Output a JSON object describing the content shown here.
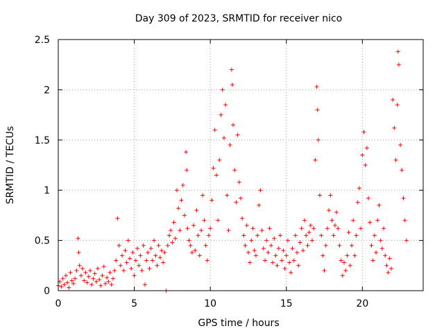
{
  "chart_data": {
    "type": "scatter",
    "title": "Day 309 of 2023, SRMTID for receiver nico",
    "xlabel": "GPS time / hours",
    "ylabel": "SRMTID / TECUs",
    "xlim": [
      0,
      24
    ],
    "ylim": [
      0,
      2.5
    ],
    "xticks": [
      0,
      5,
      10,
      15,
      20
    ],
    "yticks": [
      0,
      0.5,
      1,
      1.5,
      2,
      2.5
    ],
    "xtick_labels": [
      "0",
      "5",
      "10",
      "15",
      "20"
    ],
    "ytick_labels": [
      "0",
      "0.5",
      "1",
      "1.5",
      "2",
      "2.5"
    ],
    "grid": true,
    "marker": "+",
    "color": "#ff0000",
    "series": [
      {
        "name": "SRMTID",
        "points": [
          [
            0.0,
            0.05
          ],
          [
            0.1,
            0.09
          ],
          [
            0.2,
            0.04
          ],
          [
            0.3,
            0.12
          ],
          [
            0.4,
            0.06
          ],
          [
            0.5,
            0.15
          ],
          [
            0.6,
            0.08
          ],
          [
            0.7,
            0.03
          ],
          [
            0.8,
            0.18
          ],
          [
            0.9,
            0.1
          ],
          [
            1.0,
            0.07
          ],
          [
            1.1,
            0.12
          ],
          [
            1.2,
            0.2
          ],
          [
            1.3,
            0.52
          ],
          [
            1.35,
            0.38
          ],
          [
            1.4,
            0.25
          ],
          [
            1.5,
            0.15
          ],
          [
            1.6,
            0.22
          ],
          [
            1.7,
            0.1
          ],
          [
            1.8,
            0.18
          ],
          [
            1.9,
            0.08
          ],
          [
            2.0,
            0.14
          ],
          [
            2.1,
            0.2
          ],
          [
            2.2,
            0.06
          ],
          [
            2.3,
            0.12
          ],
          [
            2.4,
            0.17
          ],
          [
            2.5,
            0.09
          ],
          [
            2.6,
            0.22
          ],
          [
            2.7,
            0.11
          ],
          [
            2.8,
            0.05
          ],
          [
            2.9,
            0.15
          ],
          [
            3.0,
            0.24
          ],
          [
            3.1,
            0.07
          ],
          [
            3.2,
            0.13
          ],
          [
            3.3,
            0.09
          ],
          [
            3.4,
            0.18
          ],
          [
            3.5,
            0.06
          ],
          [
            3.6,
            0.12
          ],
          [
            3.7,
            0.2
          ],
          [
            3.8,
            0.3
          ],
          [
            3.9,
            0.72
          ],
          [
            4.0,
            0.45
          ],
          [
            4.1,
            0.25
          ],
          [
            4.2,
            0.35
          ],
          [
            4.3,
            0.2
          ],
          [
            4.4,
            0.4
          ],
          [
            4.5,
            0.28
          ],
          [
            4.6,
            0.5
          ],
          [
            4.7,
            0.32
          ],
          [
            4.8,
            0.22
          ],
          [
            4.9,
            0.38
          ],
          [
            5.0,
            0.15
          ],
          [
            5.1,
            0.3
          ],
          [
            5.2,
            0.42
          ],
          [
            5.3,
            0.25
          ],
          [
            5.4,
            0.35
          ],
          [
            5.5,
            0.2
          ],
          [
            5.6,
            0.45
          ],
          [
            5.7,
            0.06
          ],
          [
            5.8,
            0.3
          ],
          [
            5.9,
            0.38
          ],
          [
            6.0,
            0.22
          ],
          [
            6.1,
            0.42
          ],
          [
            6.2,
            0.3
          ],
          [
            6.3,
            0.5
          ],
          [
            6.4,
            0.35
          ],
          [
            6.5,
            0.25
          ],
          [
            6.6,
            0.45
          ],
          [
            6.7,
            0.33
          ],
          [
            6.8,
            0.4
          ],
          [
            6.9,
            0.28
          ],
          [
            7.0,
            0.38
          ],
          [
            7.1,
            0.0
          ],
          [
            7.2,
            0.45
          ],
          [
            7.3,
            0.55
          ],
          [
            7.4,
            0.6
          ],
          [
            7.5,
            0.48
          ],
          [
            7.6,
            0.68
          ],
          [
            7.7,
            0.52
          ],
          [
            7.8,
            1.0
          ],
          [
            7.9,
            0.82
          ],
          [
            8.0,
            0.6
          ],
          [
            8.1,
            0.9
          ],
          [
            8.2,
            1.05
          ],
          [
            8.3,
            0.75
          ],
          [
            8.4,
            1.38
          ],
          [
            8.45,
            1.2
          ],
          [
            8.5,
            0.62
          ],
          [
            8.6,
            0.5
          ],
          [
            8.7,
            0.45
          ],
          [
            8.8,
            0.38
          ],
          [
            8.9,
            0.65
          ],
          [
            9.0,
            0.4
          ],
          [
            9.1,
            0.8
          ],
          [
            9.2,
            0.55
          ],
          [
            9.3,
            0.35
          ],
          [
            9.4,
            0.6
          ],
          [
            9.5,
            0.95
          ],
          [
            9.6,
            0.7
          ],
          [
            9.7,
            0.45
          ],
          [
            9.8,
            0.3
          ],
          [
            9.9,
            0.55
          ],
          [
            10.0,
            0.62
          ],
          [
            10.1,
            0.9
          ],
          [
            10.2,
            1.22
          ],
          [
            10.3,
            1.6
          ],
          [
            10.4,
            1.15
          ],
          [
            10.5,
            0.7
          ],
          [
            10.6,
            1.3
          ],
          [
            10.7,
            1.75
          ],
          [
            10.8,
            2.0
          ],
          [
            10.9,
            1.52
          ],
          [
            11.0,
            1.85
          ],
          [
            11.1,
            0.95
          ],
          [
            11.2,
            0.6
          ],
          [
            11.3,
            1.45
          ],
          [
            11.4,
            2.2
          ],
          [
            11.45,
            2.05
          ],
          [
            11.5,
            1.65
          ],
          [
            11.6,
            1.2
          ],
          [
            11.7,
            0.88
          ],
          [
            11.8,
            1.55
          ],
          [
            11.9,
            1.08
          ],
          [
            12.0,
            0.92
          ],
          [
            12.1,
            0.72
          ],
          [
            12.2,
            0.55
          ],
          [
            12.3,
            0.45
          ],
          [
            12.4,
            0.65
          ],
          [
            12.5,
            0.38
          ],
          [
            12.6,
            0.28
          ],
          [
            12.7,
            0.5
          ],
          [
            12.8,
            0.62
          ],
          [
            12.9,
            0.4
          ],
          [
            13.0,
            0.35
          ],
          [
            13.1,
            0.55
          ],
          [
            13.2,
            0.85
          ],
          [
            13.3,
            1.0
          ],
          [
            13.4,
            0.6
          ],
          [
            13.5,
            0.42
          ],
          [
            13.6,
            0.3
          ],
          [
            13.7,
            0.5
          ],
          [
            13.8,
            0.38
          ],
          [
            13.9,
            0.62
          ],
          [
            14.0,
            0.45
          ],
          [
            14.1,
            0.28
          ],
          [
            14.2,
            0.52
          ],
          [
            14.3,
            0.35
          ],
          [
            14.4,
            0.25
          ],
          [
            14.5,
            0.42
          ],
          [
            14.6,
            0.55
          ],
          [
            14.7,
            0.3
          ],
          [
            14.8,
            0.4
          ],
          [
            14.9,
            0.22
          ],
          [
            15.0,
            0.35
          ],
          [
            15.1,
            0.5
          ],
          [
            15.2,
            0.28
          ],
          [
            15.3,
            0.18
          ],
          [
            15.4,
            0.42
          ],
          [
            15.5,
            0.3
          ],
          [
            15.6,
            0.55
          ],
          [
            15.7,
            0.38
          ],
          [
            15.8,
            0.25
          ],
          [
            15.9,
            0.48
          ],
          [
            16.0,
            0.62
          ],
          [
            16.1,
            0.4
          ],
          [
            16.2,
            0.7
          ],
          [
            16.3,
            0.55
          ],
          [
            16.4,
            0.45
          ],
          [
            16.5,
            0.58
          ],
          [
            16.6,
            0.65
          ],
          [
            16.7,
            0.5
          ],
          [
            16.8,
            0.62
          ],
          [
            16.9,
            1.3
          ],
          [
            17.0,
            2.03
          ],
          [
            17.05,
            1.8
          ],
          [
            17.1,
            1.5
          ],
          [
            17.2,
            0.95
          ],
          [
            17.3,
            0.55
          ],
          [
            17.4,
            0.35
          ],
          [
            17.5,
            0.2
          ],
          [
            17.6,
            0.45
          ],
          [
            17.7,
            0.62
          ],
          [
            17.8,
            0.8
          ],
          [
            17.9,
            0.95
          ],
          [
            18.0,
            0.7
          ],
          [
            18.1,
            0.55
          ],
          [
            18.2,
            0.65
          ],
          [
            18.3,
            0.78
          ],
          [
            18.4,
            0.62
          ],
          [
            18.5,
            0.45
          ],
          [
            18.6,
            0.3
          ],
          [
            18.7,
            0.15
          ],
          [
            18.8,
            0.28
          ],
          [
            18.9,
            0.2
          ],
          [
            19.0,
            0.35
          ],
          [
            19.1,
            0.58
          ],
          [
            19.2,
            0.25
          ],
          [
            19.3,
            0.45
          ],
          [
            19.4,
            0.7
          ],
          [
            19.5,
            0.35
          ],
          [
            19.6,
            0.55
          ],
          [
            19.7,
            0.88
          ],
          [
            19.8,
            1.02
          ],
          [
            19.9,
            0.62
          ],
          [
            20.0,
            1.35
          ],
          [
            20.1,
            1.58
          ],
          [
            20.2,
            1.25
          ],
          [
            20.3,
            1.42
          ],
          [
            20.4,
            0.92
          ],
          [
            20.5,
            0.68
          ],
          [
            20.6,
            0.45
          ],
          [
            20.7,
            0.3
          ],
          [
            20.8,
            0.55
          ],
          [
            20.9,
            0.38
          ],
          [
            21.0,
            0.7
          ],
          [
            21.1,
            0.85
          ],
          [
            21.2,
            0.5
          ],
          [
            21.3,
            0.42
          ],
          [
            21.4,
            0.62
          ],
          [
            21.5,
            0.35
          ],
          [
            21.6,
            0.25
          ],
          [
            21.7,
            0.18
          ],
          [
            21.8,
            0.32
          ],
          [
            21.9,
            0.22
          ],
          [
            22.0,
            1.9
          ],
          [
            22.1,
            1.62
          ],
          [
            22.2,
            1.3
          ],
          [
            22.3,
            1.85
          ],
          [
            22.35,
            2.38
          ],
          [
            22.4,
            2.25
          ],
          [
            22.5,
            1.45
          ],
          [
            22.6,
            1.2
          ],
          [
            22.7,
            0.92
          ],
          [
            22.8,
            0.7
          ],
          [
            22.9,
            0.5
          ]
        ]
      }
    ]
  }
}
